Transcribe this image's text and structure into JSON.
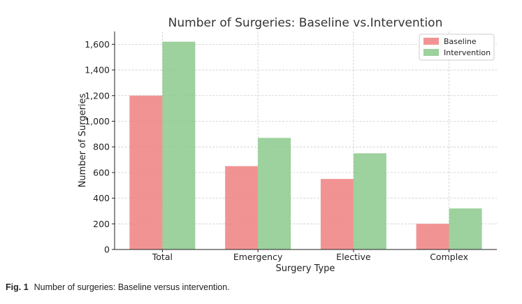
{
  "chart_data": {
    "type": "bar",
    "title": "Number of Surgeries: Baseline vs.Intervention",
    "xlabel": "Surgery Type",
    "ylabel": "Number of Surgeries",
    "categories": [
      "Total",
      "Emergency",
      "Elective",
      "Complex"
    ],
    "series": [
      {
        "name": "Baseline",
        "values": [
          1200,
          650,
          550,
          200
        ],
        "color": "#f08080"
      },
      {
        "name": "Intervention",
        "values": [
          1620,
          870,
          750,
          320
        ],
        "color": "#8cc98c"
      }
    ],
    "ylim": [
      0,
      1700
    ],
    "yticks": [
      "0",
      "200",
      "400",
      "600",
      "800",
      "1,000",
      "1,200",
      "1,400",
      "1,600"
    ],
    "ytick_values": [
      0,
      200,
      400,
      600,
      800,
      1000,
      1200,
      1400,
      1600
    ],
    "grid": true,
    "legend_position": "top-right"
  },
  "caption": {
    "label": "Fig. 1",
    "text": "Number of surgeries: Baseline versus intervention."
  }
}
